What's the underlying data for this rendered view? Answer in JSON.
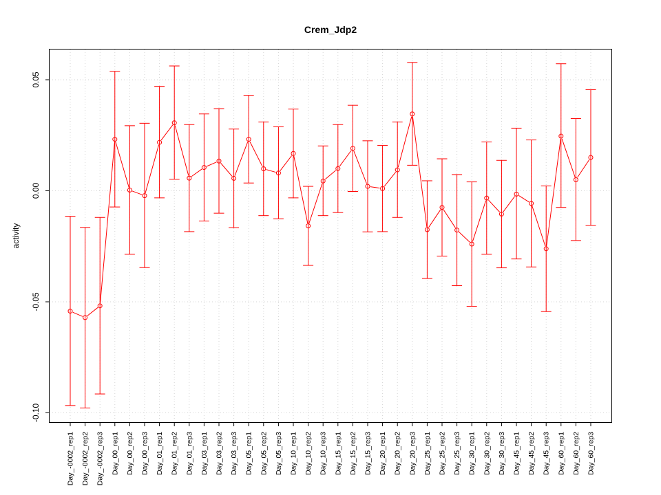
{
  "chart_data": {
    "type": "line",
    "title": "Crem_Jdp2",
    "xlabel": "",
    "ylabel": "activity",
    "ylim": [
      -0.104,
      0.064
    ],
    "yticks": [
      -0.1,
      -0.05,
      0.0,
      0.05
    ],
    "ytick_labels": [
      "-0.10",
      "-0.05",
      "0.00",
      "0.05"
    ],
    "grid": true,
    "categories": [
      "Day_-0002_rep1",
      "Day_-0002_rep2",
      "Day_-0002_rep3",
      "Day_00_rep1",
      "Day_00_rep2",
      "Day_00_rep3",
      "Day_01_rep1",
      "Day_01_rep2",
      "Day_01_rep3",
      "Day_03_rep1",
      "Day_03_rep2",
      "Day_03_rep3",
      "Day_05_rep1",
      "Day_05_rep2",
      "Day_05_rep3",
      "Day_10_rep1",
      "Day_10_rep2",
      "Day_10_rep3",
      "Day_15_rep1",
      "Day_15_rep2",
      "Day_15_rep3",
      "Day_20_rep1",
      "Day_20_rep2",
      "Day_20_rep3",
      "Day_25_rep1",
      "Day_25_rep2",
      "Day_25_rep3",
      "Day_30_rep1",
      "Day_30_rep2",
      "Day_30_rep3",
      "Day_45_rep1",
      "Day_45_rep2",
      "Day_45_rep3",
      "Day_60_rep1",
      "Day_60_rep2",
      "Day_60_rep3"
    ],
    "series": [
      {
        "color": "#ff0000",
        "values": [
          -0.0542,
          -0.0571,
          -0.0518,
          0.0232,
          0.0003,
          -0.0022,
          0.0218,
          0.0306,
          0.0057,
          0.0105,
          0.0134,
          0.0056,
          0.0232,
          0.0099,
          0.008,
          0.0168,
          -0.0158,
          0.0044,
          0.01,
          0.0191,
          0.002,
          0.001,
          0.0094,
          0.0346,
          -0.0175,
          -0.0075,
          -0.0177,
          -0.024,
          -0.0033,
          -0.0105,
          -0.0015,
          -0.0057,
          -0.0261,
          0.0246,
          0.005,
          0.015
        ],
        "upper": [
          -0.0115,
          -0.0165,
          -0.012,
          0.0538,
          0.0293,
          0.0304,
          0.047,
          0.0562,
          0.0298,
          0.0346,
          0.037,
          0.0278,
          0.043,
          0.031,
          0.0288,
          0.0368,
          0.002,
          0.0202,
          0.0298,
          0.0385,
          0.0225,
          0.0204,
          0.031,
          0.0578,
          0.0045,
          0.0144,
          0.0073,
          0.004,
          0.022,
          0.0137,
          0.0282,
          0.0229,
          0.0022,
          0.0572,
          0.0325,
          0.0455
        ],
        "lower": [
          -0.0967,
          -0.0978,
          -0.0915,
          -0.0073,
          -0.0286,
          -0.0346,
          -0.0032,
          0.0052,
          -0.0184,
          -0.0136,
          -0.0101,
          -0.0166,
          0.0035,
          -0.0112,
          -0.0126,
          -0.0032,
          -0.0336,
          -0.0112,
          -0.0098,
          -0.0003,
          -0.0185,
          -0.0184,
          -0.012,
          0.0115,
          -0.0395,
          -0.0294,
          -0.0427,
          -0.052,
          -0.0286,
          -0.0347,
          -0.0307,
          -0.0343,
          -0.0544,
          -0.0075,
          -0.0224,
          -0.0155
        ]
      }
    ]
  }
}
